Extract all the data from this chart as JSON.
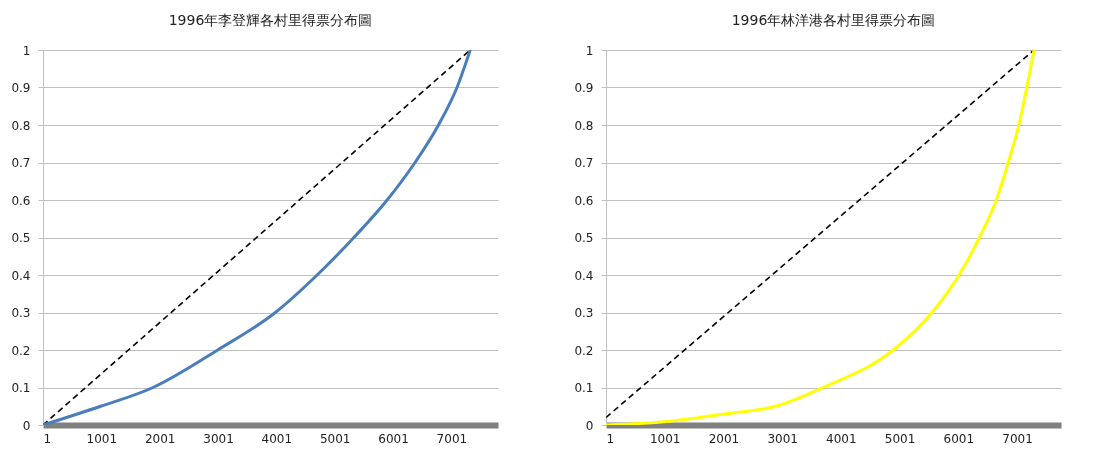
{
  "chart_data": [
    {
      "type": "line",
      "title": "1996年李登輝各村里得票分布圖",
      "xlim": [
        1,
        7800
      ],
      "xticks": [
        1,
        1001,
        2001,
        3001,
        4001,
        5001,
        6001,
        7001
      ],
      "ylim": [
        0,
        1
      ],
      "yticks": [
        0,
        0.1,
        0.2,
        0.3,
        0.4,
        0.5,
        0.6,
        0.7,
        0.8,
        0.9,
        1
      ],
      "grid": "y",
      "series": [
        {
          "color": "#000000",
          "line_style": "dashed",
          "x": [
            1,
            7324
          ],
          "values": [
            0,
            1
          ]
        },
        {
          "color": "#4a7ebb",
          "x": [
            1,
            990,
            1887,
            2995,
            3983,
            4700,
            5330,
            5900,
            6378,
            6780,
            7097,
            7324
          ],
          "values": [
            0,
            0.05,
            0.1,
            0.2,
            0.3,
            0.4,
            0.5,
            0.6,
            0.7,
            0.8,
            0.9,
            1
          ]
        }
      ]
    },
    {
      "type": "line",
      "title": "1996年林洋港各村里得票分布圖",
      "xlim": [
        1,
        7750
      ],
      "xticks": [
        1,
        1001,
        2001,
        3001,
        4001,
        5001,
        6001,
        7001
      ],
      "ylim": [
        0,
        1
      ],
      "yticks": [
        0,
        0.1,
        0.2,
        0.3,
        0.4,
        0.5,
        0.6,
        0.7,
        0.8,
        0.9,
        1
      ],
      "grid": "y",
      "series": [
        {
          "color": "#000000",
          "line_style": "dashed",
          "x": [
            1,
            7290
          ],
          "values": [
            0.02,
            1
          ]
        },
        {
          "color": "#ffff00",
          "x": [
            1,
            1091,
            2049,
            2887,
            3696,
            4893,
            5552,
            6013,
            6360,
            6648,
            6851,
            7031,
            7168,
            7290
          ],
          "values": [
            0,
            0.01,
            0.03,
            0.05,
            0.1,
            0.2,
            0.3,
            0.4,
            0.5,
            0.6,
            0.7,
            0.8,
            0.9,
            1
          ]
        }
      ]
    }
  ]
}
